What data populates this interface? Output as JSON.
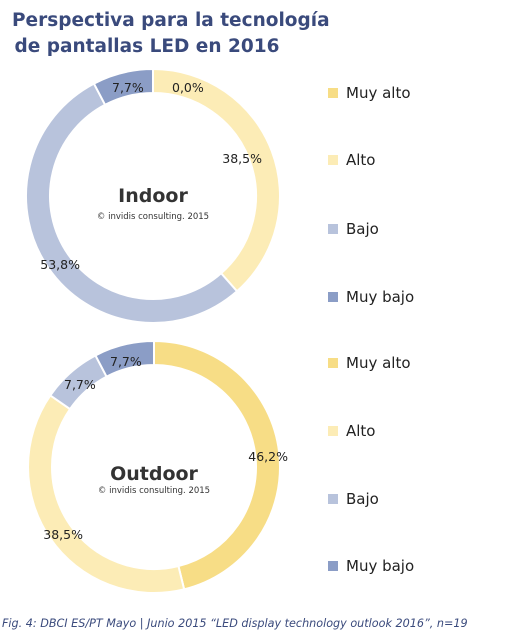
{
  "title_line1": "Perspectiva para la tecnología",
  "title_line2": "de pantallas LED en 2016",
  "colors": {
    "Muy alto": "#f7dd86",
    "Alto": "#fcecb6",
    "Bajo": "#b8c3dc",
    "Muy bajo": "#8b9dc6"
  },
  "chart_data": [
    {
      "type": "pie",
      "title": "Indoor",
      "subtitle": "© invidis consulting. 2015",
      "categories": [
        "Muy alto",
        "Alto",
        "Bajo",
        "Muy bajo"
      ],
      "values": [
        0.0,
        38.5,
        53.8,
        7.7
      ],
      "value_labels": [
        "0,0%",
        "38,5%",
        "53,8%",
        "7,7%"
      ],
      "legend": [
        "Muy alto",
        "Alto",
        "Bajo",
        "Muy bajo"
      ]
    },
    {
      "type": "pie",
      "title": "Outdoor",
      "subtitle": "© invidis consulting. 2015",
      "categories": [
        "Muy alto",
        "Alto",
        "Bajo",
        "Muy bajo"
      ],
      "values": [
        46.2,
        38.5,
        7.7,
        7.7
      ],
      "value_labels": [
        "46,2%",
        "38,5%",
        "7,7%",
        "7,7%"
      ],
      "legend": [
        "Muy alto",
        "Alto",
        "Bajo",
        "Muy bajo"
      ]
    }
  ],
  "caption": "Fig. 4: DBCI ES/PT Mayo | Junio 2015 “LED display technology outlook 2016”,  n=19"
}
